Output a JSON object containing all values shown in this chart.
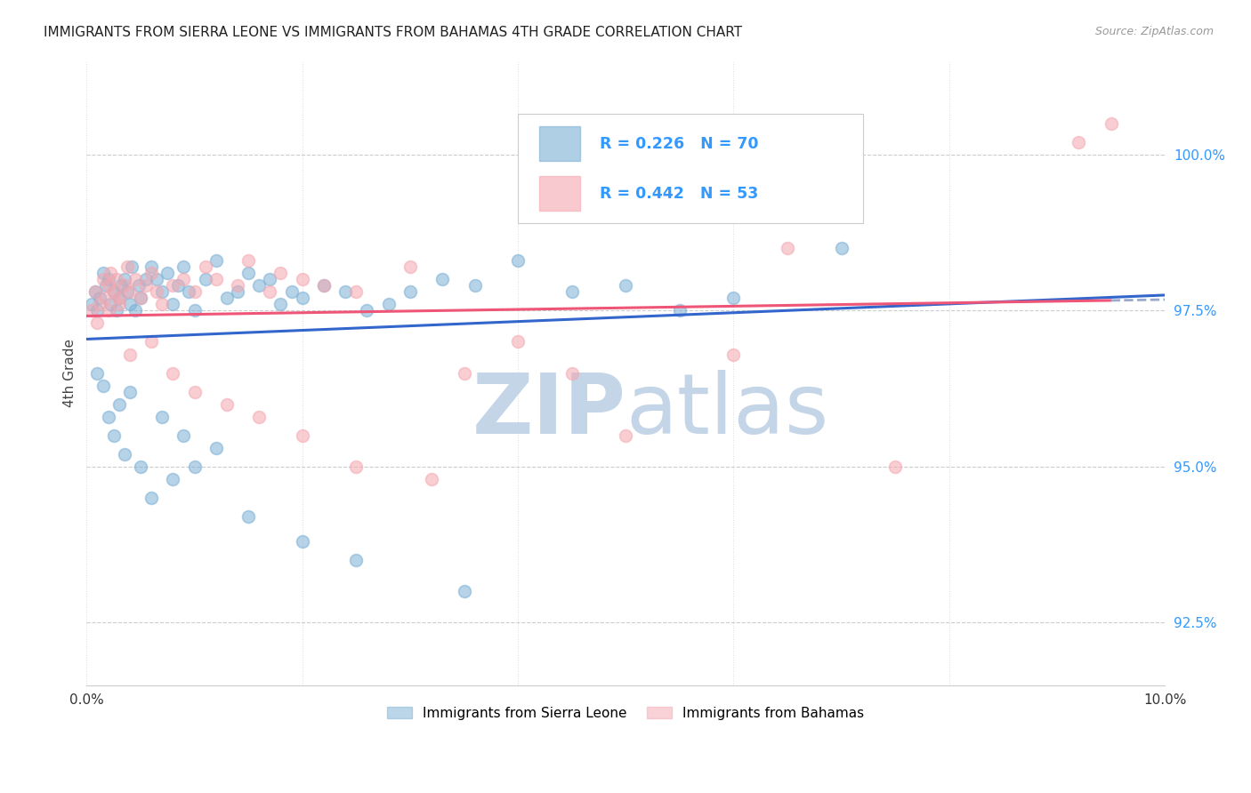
{
  "title": "IMMIGRANTS FROM SIERRA LEONE VS IMMIGRANTS FROM BAHAMAS 4TH GRADE CORRELATION CHART",
  "source": "Source: ZipAtlas.com",
  "ylabel": "4th Grade",
  "ytick_values": [
    92.5,
    95.0,
    97.5,
    100.0
  ],
  "xlim": [
    0.0,
    10.0
  ],
  "ylim": [
    91.5,
    101.5
  ],
  "blue_r": 0.226,
  "blue_n": 70,
  "pink_r": 0.442,
  "pink_n": 53,
  "blue_color": "#7BAFD4",
  "pink_color": "#F4A7B0",
  "blue_line_color": "#3366CC",
  "pink_line_color": "#EE5577",
  "dash_line_color": "#99AACC",
  "watermark_zip": "ZIP",
  "watermark_atlas": "atlas",
  "watermark_color_zip": "#C5D5E8",
  "watermark_color_atlas": "#C5D5E8",
  "legend_label_blue": "Immigrants from Sierra Leone",
  "legend_label_pink": "Immigrants from Bahamas",
  "blue_x": [
    0.05,
    0.08,
    0.1,
    0.12,
    0.15,
    0.18,
    0.2,
    0.22,
    0.25,
    0.28,
    0.3,
    0.32,
    0.35,
    0.38,
    0.4,
    0.42,
    0.45,
    0.48,
    0.5,
    0.55,
    0.6,
    0.65,
    0.7,
    0.75,
    0.8,
    0.85,
    0.9,
    0.95,
    1.0,
    1.1,
    1.2,
    1.3,
    1.4,
    1.5,
    1.6,
    1.7,
    1.8,
    1.9,
    2.0,
    2.2,
    2.4,
    2.6,
    2.8,
    3.0,
    3.3,
    3.6,
    4.0,
    4.5,
    5.0,
    5.5,
    6.0,
    7.0,
    0.1,
    0.15,
    0.2,
    0.25,
    0.3,
    0.35,
    0.4,
    0.5,
    0.6,
    0.7,
    0.8,
    0.9,
    1.0,
    1.2,
    1.5,
    2.0,
    2.5,
    3.5
  ],
  "blue_y": [
    97.6,
    97.8,
    97.5,
    97.7,
    98.1,
    97.9,
    98.0,
    97.6,
    97.8,
    97.5,
    97.7,
    97.9,
    98.0,
    97.8,
    97.6,
    98.2,
    97.5,
    97.9,
    97.7,
    98.0,
    98.2,
    98.0,
    97.8,
    98.1,
    97.6,
    97.9,
    98.2,
    97.8,
    97.5,
    98.0,
    98.3,
    97.7,
    97.8,
    98.1,
    97.9,
    98.0,
    97.6,
    97.8,
    97.7,
    97.9,
    97.8,
    97.5,
    97.6,
    97.8,
    98.0,
    97.9,
    98.3,
    97.8,
    97.9,
    97.5,
    97.7,
    98.5,
    96.5,
    96.3,
    95.8,
    95.5,
    96.0,
    95.2,
    96.2,
    95.0,
    94.5,
    95.8,
    94.8,
    95.5,
    95.0,
    95.3,
    94.2,
    93.8,
    93.5,
    93.0
  ],
  "pink_x": [
    0.05,
    0.08,
    0.12,
    0.15,
    0.18,
    0.2,
    0.22,
    0.25,
    0.28,
    0.3,
    0.35,
    0.38,
    0.4,
    0.45,
    0.5,
    0.55,
    0.6,
    0.65,
    0.7,
    0.8,
    0.9,
    1.0,
    1.1,
    1.2,
    1.4,
    1.5,
    1.7,
    1.8,
    2.0,
    2.2,
    2.5,
    3.0,
    3.5,
    4.0,
    5.0,
    6.0,
    7.5,
    9.2,
    0.1,
    0.2,
    0.3,
    0.4,
    0.6,
    0.8,
    1.0,
    1.3,
    1.6,
    2.0,
    2.5,
    3.2,
    4.5,
    6.5,
    9.5
  ],
  "pink_y": [
    97.5,
    97.8,
    97.6,
    98.0,
    97.7,
    97.9,
    98.1,
    97.8,
    98.0,
    97.6,
    97.9,
    98.2,
    97.8,
    98.0,
    97.7,
    97.9,
    98.1,
    97.8,
    97.6,
    97.9,
    98.0,
    97.8,
    98.2,
    98.0,
    97.9,
    98.3,
    97.8,
    98.1,
    98.0,
    97.9,
    97.8,
    98.2,
    96.5,
    97.0,
    95.5,
    96.8,
    95.0,
    100.2,
    97.3,
    97.5,
    97.7,
    96.8,
    97.0,
    96.5,
    96.2,
    96.0,
    95.8,
    95.5,
    95.0,
    94.8,
    96.5,
    98.5,
    100.5
  ]
}
